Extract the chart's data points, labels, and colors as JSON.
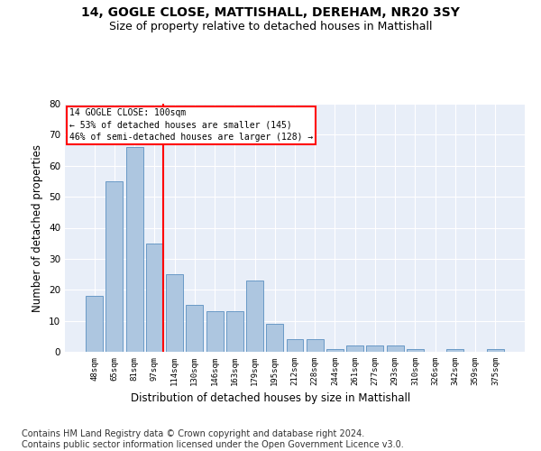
{
  "title": "14, GOGLE CLOSE, MATTISHALL, DEREHAM, NR20 3SY",
  "subtitle": "Size of property relative to detached houses in Mattishall",
  "xlabel": "Distribution of detached houses by size in Mattishall",
  "ylabel": "Number of detached properties",
  "categories": [
    "48sqm",
    "65sqm",
    "81sqm",
    "97sqm",
    "114sqm",
    "130sqm",
    "146sqm",
    "163sqm",
    "179sqm",
    "195sqm",
    "212sqm",
    "228sqm",
    "244sqm",
    "261sqm",
    "277sqm",
    "293sqm",
    "310sqm",
    "326sqm",
    "342sqm",
    "359sqm",
    "375sqm"
  ],
  "values": [
    18,
    55,
    66,
    35,
    25,
    15,
    13,
    13,
    23,
    9,
    4,
    4,
    1,
    2,
    2,
    2,
    1,
    0,
    1,
    0,
    1
  ],
  "bar_color": "#adc6e0",
  "bar_edge_color": "#5a8fc0",
  "vline_color": "red",
  "annotation_text": "14 GOGLE CLOSE: 100sqm\n← 53% of detached houses are smaller (145)\n46% of semi-detached houses are larger (128) →",
  "annotation_box_color": "white",
  "annotation_box_edge_color": "red",
  "ylim": [
    0,
    80
  ],
  "yticks": [
    0,
    10,
    20,
    30,
    40,
    50,
    60,
    70,
    80
  ],
  "footer": "Contains HM Land Registry data © Crown copyright and database right 2024.\nContains public sector information licensed under the Open Government Licence v3.0.",
  "bg_color": "#e8eef8",
  "title_fontsize": 10,
  "subtitle_fontsize": 9,
  "xlabel_fontsize": 8.5,
  "ylabel_fontsize": 8.5,
  "footer_fontsize": 7
}
